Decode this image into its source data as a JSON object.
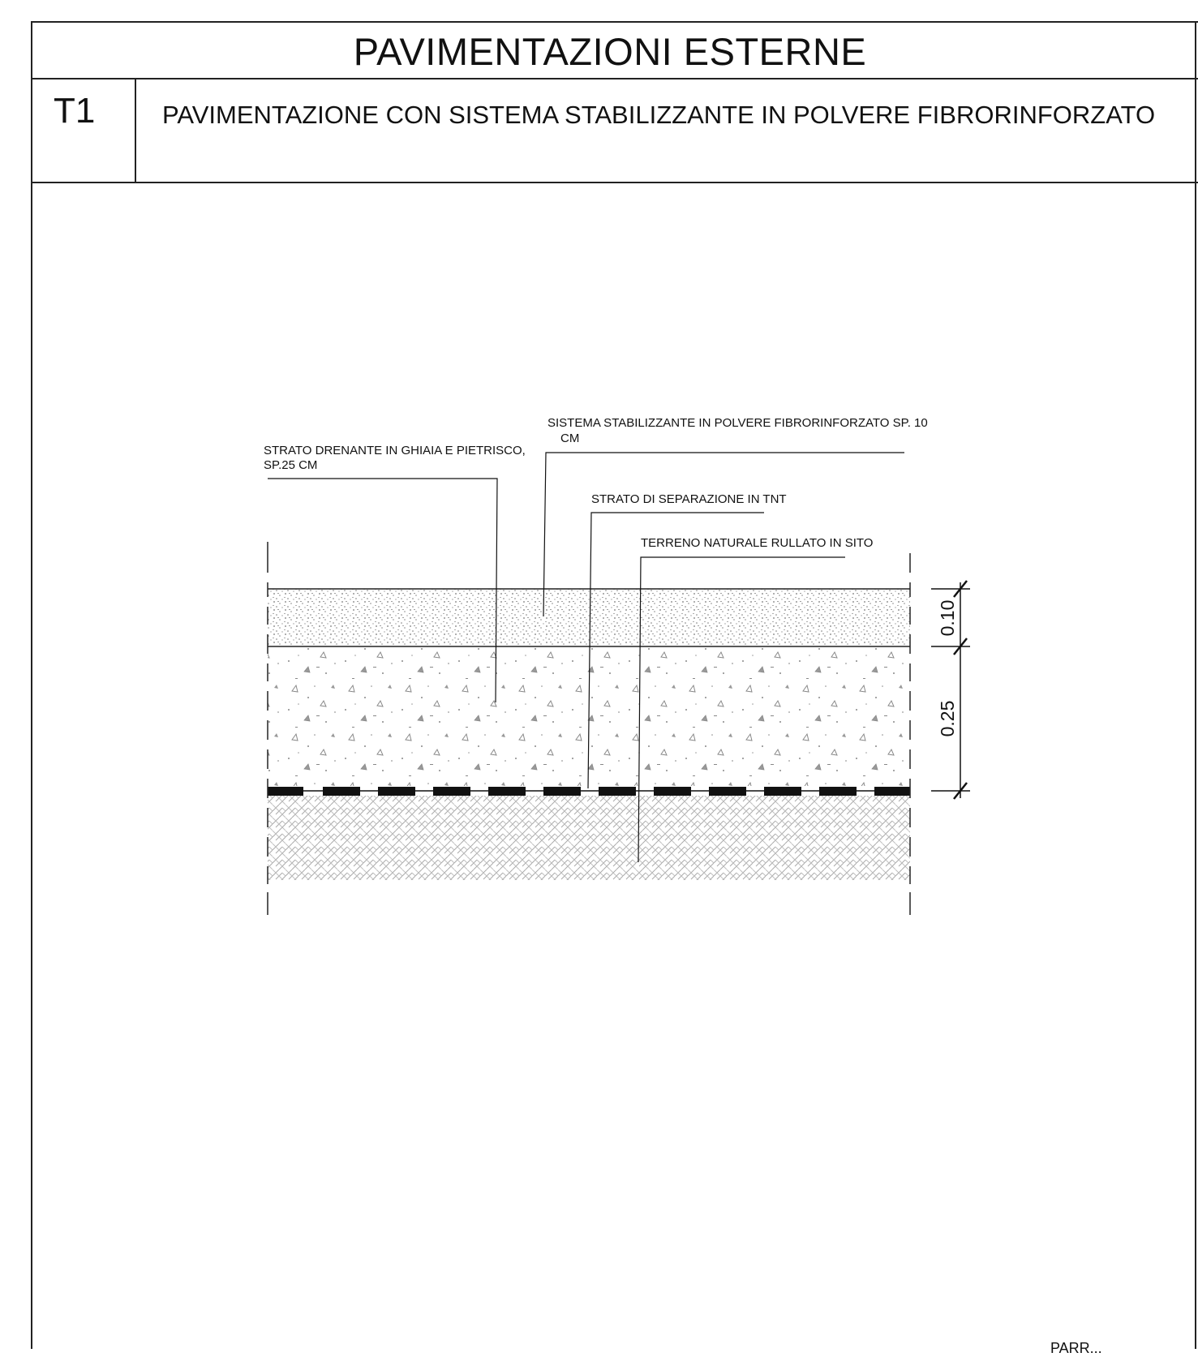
{
  "header": {
    "title": "PAVIMENTAZIONI ESTERNE",
    "code": "T1",
    "subtitle": "PAVIMENTAZIONE CON SISTEMA STABILIZZANTE IN POLVERE FIBRORINFORZATO"
  },
  "section": {
    "callouts": {
      "stabilizzante_line1": "SISTEMA STABILIZZANTE IN POLVERE FIBRORINFORZATO SP. 10",
      "stabilizzante_line2": "CM",
      "drenante_line1": "STRATO DRENANTE IN GHIAIA E PIETRISCO,",
      "drenante_line2": "SP.25 CM",
      "separazione": "STRATO DI SEPARAZIONE IN TNT",
      "terreno": "TERRENO NATURALE RULLATO IN SITO"
    },
    "dimensions": {
      "top_layer": "0.10",
      "drain_layer": "0.25"
    }
  },
  "footer": {
    "corner_text": "PARR..."
  }
}
